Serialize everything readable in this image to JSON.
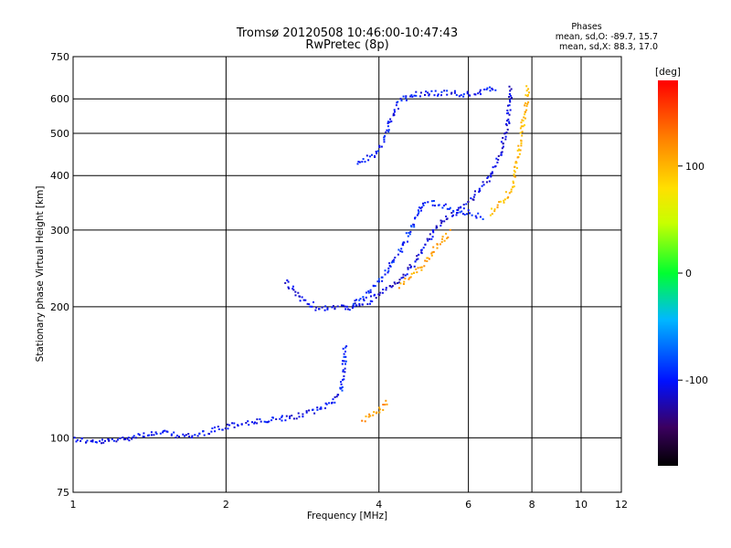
{
  "chart_data": {
    "type": "scatter",
    "title": "Tromsø 20120508 10:46:00-10:47:43",
    "subtitle": "RwPretec (8p)",
    "xlabel": "Frequency [MHz]",
    "ylabel": "Stationary phase Virtual Height [km]",
    "x_scale": "log",
    "y_scale": "log",
    "xlim": [
      1,
      12
    ],
    "ylim": [
      75,
      750
    ],
    "xticks": [
      "1",
      "2",
      "4",
      "6",
      "8",
      "10",
      "12"
    ],
    "yticks": [
      "75",
      "100",
      "200",
      "300",
      "400",
      "500",
      "600",
      "750"
    ],
    "grid": true,
    "phases_box": {
      "heading": "Phases",
      "line_o": "mean, sd,O: -89.7, 15.7",
      "line_x": "mean, sd,X:  88.3, 17.0"
    },
    "colorbar": {
      "label": "[deg]",
      "range": [
        -180,
        180
      ],
      "ticks": [
        "100",
        "0",
        "-100"
      ],
      "tick_values": [
        100,
        0,
        -100
      ]
    },
    "traces": [
      {
        "points": [
          [
            1.0,
            100
          ],
          [
            1.1,
            98
          ],
          [
            1.2,
            99
          ],
          [
            1.35,
            102
          ],
          [
            1.5,
            103
          ],
          [
            1.7,
            101
          ],
          [
            1.9,
            105
          ],
          [
            2.1,
            108
          ],
          [
            2.4,
            110
          ],
          [
            2.7,
            112
          ],
          [
            3.0,
            116
          ],
          [
            3.2,
            121
          ],
          [
            3.35,
            128
          ]
        ],
        "phase": -105
      },
      {
        "points": [
          [
            3.35,
            128
          ],
          [
            3.4,
            145
          ],
          [
            3.42,
            165
          ]
        ],
        "phase": -95
      },
      {
        "points": [
          [
            2.6,
            230
          ],
          [
            2.8,
            210
          ],
          [
            3.0,
            200
          ],
          [
            3.2,
            199
          ],
          [
            3.4,
            200
          ],
          [
            3.6,
            202
          ],
          [
            3.8,
            206
          ],
          [
            4.0,
            215
          ],
          [
            4.3,
            228
          ],
          [
            4.6,
            245
          ],
          [
            4.9,
            275
          ],
          [
            5.1,
            300
          ],
          [
            5.4,
            320
          ],
          [
            5.8,
            340
          ],
          [
            6.2,
            365
          ],
          [
            6.6,
            400
          ],
          [
            6.9,
            450
          ],
          [
            7.1,
            510
          ],
          [
            7.2,
            580
          ],
          [
            7.25,
            650
          ]
        ],
        "phase": -110
      },
      {
        "points": [
          [
            3.5,
            200
          ],
          [
            3.8,
            215
          ],
          [
            4.1,
            240
          ],
          [
            4.4,
            270
          ],
          [
            4.7,
            320
          ],
          [
            4.9,
            350
          ],
          [
            5.2,
            345
          ],
          [
            5.6,
            335
          ],
          [
            6.0,
            330
          ],
          [
            6.4,
            322
          ]
        ],
        "phase": -95
      },
      {
        "points": [
          [
            3.6,
            430
          ],
          [
            3.9,
            445
          ],
          [
            4.1,
            490
          ],
          [
            4.25,
            560
          ],
          [
            4.4,
            600
          ],
          [
            4.7,
            618
          ],
          [
            5.0,
            622
          ],
          [
            5.5,
            620
          ],
          [
            6.0,
            618
          ],
          [
            6.4,
            625
          ],
          [
            6.8,
            640
          ]
        ],
        "phase": -100
      },
      {
        "points": [
          [
            4.4,
            225
          ],
          [
            4.7,
            240
          ],
          [
            5.0,
            262
          ],
          [
            5.3,
            285
          ],
          [
            5.5,
            300
          ]
        ],
        "phase": 110
      },
      {
        "points": [
          [
            3.7,
            110
          ],
          [
            3.95,
            115
          ],
          [
            4.15,
            122
          ]
        ],
        "phase": 115
      },
      {
        "points": [
          [
            6.6,
            330
          ],
          [
            7.0,
            350
          ],
          [
            7.3,
            380
          ],
          [
            7.5,
            450
          ],
          [
            7.65,
            530
          ],
          [
            7.8,
            600
          ],
          [
            7.85,
            650
          ]
        ],
        "phase": 98
      }
    ]
  }
}
